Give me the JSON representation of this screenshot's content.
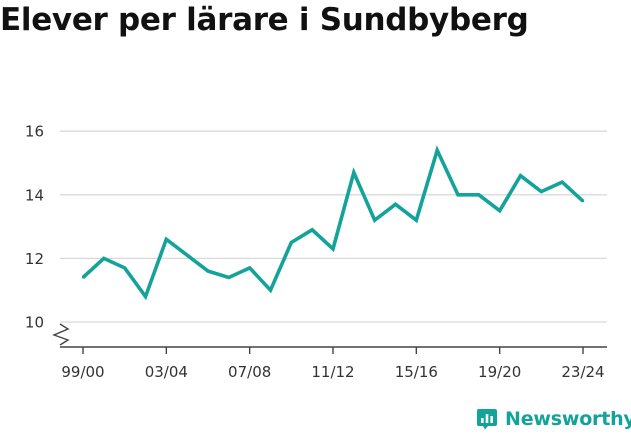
{
  "title": "Elever per lärare i Sundbyberg",
  "brand": {
    "name": "Newsworthy",
    "icon": "newsworthy-logo-icon"
  },
  "colors": {
    "line": "#13a39a",
    "grid": "#d9d9d9",
    "axis": "#444444",
    "text": "#333333"
  },
  "chart_data": {
    "type": "line",
    "title": "Elever per lärare i Sundbyberg",
    "xlabel": "",
    "ylabel": "",
    "ylim": [
      9.2,
      16.4
    ],
    "y_ticks": [
      10,
      12,
      14,
      16
    ],
    "y_axis_break": true,
    "grid": true,
    "x_tick_labels": [
      "99/00",
      "03/04",
      "07/08",
      "11/12",
      "15/16",
      "19/20",
      "23/24"
    ],
    "x": [
      "99/00",
      "00/01",
      "01/02",
      "02/03",
      "03/04",
      "04/05",
      "05/06",
      "06/07",
      "07/08",
      "08/09",
      "09/10",
      "10/11",
      "11/12",
      "12/13",
      "13/14",
      "14/15",
      "15/16",
      "16/17",
      "17/18",
      "18/19",
      "19/20",
      "20/21",
      "21/22",
      "22/23",
      "23/24"
    ],
    "series": [
      {
        "values": [
          11.4,
          12.0,
          11.7,
          10.8,
          12.6,
          12.1,
          11.6,
          11.4,
          11.7,
          11.0,
          12.5,
          12.9,
          12.3,
          14.7,
          13.2,
          13.7,
          13.2,
          15.4,
          14.0,
          14.0,
          13.5,
          14.6,
          14.1,
          14.4,
          13.8
        ]
      }
    ]
  }
}
